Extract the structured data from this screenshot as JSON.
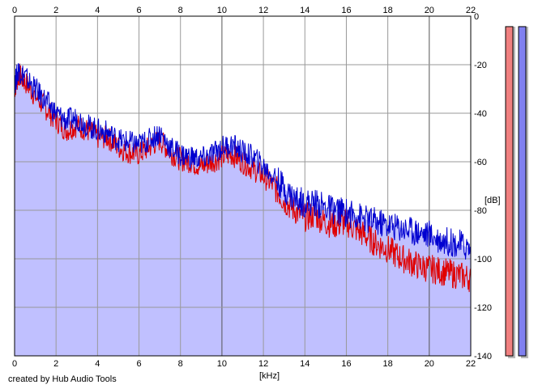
{
  "footer": {
    "credit": "created by Hub Audio Tools"
  },
  "chart_data": {
    "type": "line",
    "title": "",
    "xlabel": "[kHz]",
    "ylabel": "[dB]",
    "xlim": [
      0,
      22
    ],
    "ylim": [
      -140,
      0
    ],
    "x_ticks": [
      0,
      2,
      4,
      6,
      8,
      10,
      12,
      14,
      16,
      18,
      20,
      22
    ],
    "y_ticks": [
      0,
      -20,
      -40,
      -60,
      -80,
      -100,
      -120,
      -140
    ],
    "grid": true,
    "colors": {
      "fill": "#c0c0ff",
      "left_channel": "#e00000",
      "right_channel": "#0000d0",
      "plot_bg": "#ffffff"
    },
    "series": [
      {
        "color": "#e00000",
        "x": [
          0,
          0.2,
          0.5,
          1,
          1.5,
          2,
          2.5,
          3,
          3.5,
          4,
          4.5,
          5,
          5.5,
          6,
          6.5,
          7,
          7.5,
          8,
          8.5,
          9,
          9.5,
          10,
          10.5,
          11,
          11.5,
          12,
          12.5,
          13,
          13.5,
          14,
          14.5,
          15,
          15.5,
          16,
          16.5,
          17,
          17.5,
          18,
          18.5,
          19,
          19.5,
          20,
          20.5,
          21,
          21.5,
          22
        ],
        "values": [
          -30,
          -24,
          -27,
          -33,
          -38,
          -43,
          -47,
          -45,
          -47,
          -50,
          -50,
          -54,
          -56,
          -57,
          -54,
          -51,
          -56,
          -59,
          -60,
          -62,
          -60,
          -58,
          -57,
          -60,
          -63,
          -66,
          -70,
          -76,
          -80,
          -83,
          -82,
          -85,
          -86,
          -85,
          -88,
          -91,
          -94,
          -96,
          -99,
          -101,
          -103,
          -104,
          -105,
          -106,
          -107,
          -108
        ]
      },
      {
        "color": "#0000d0",
        "x": [
          0,
          0.2,
          0.5,
          1,
          1.5,
          2,
          2.5,
          3,
          3.5,
          4,
          4.5,
          5,
          5.5,
          6,
          6.5,
          7,
          7.5,
          8,
          8.5,
          9,
          9.5,
          10,
          10.5,
          11,
          11.5,
          12,
          12.5,
          13,
          13.5,
          14,
          14.5,
          15,
          15.5,
          16,
          16.5,
          17,
          17.5,
          18,
          18.5,
          19,
          19.5,
          20,
          20.5,
          21,
          21.5,
          22
        ],
        "values": [
          -28,
          -22,
          -25,
          -30,
          -35,
          -40,
          -43,
          -42,
          -45,
          -47,
          -48,
          -51,
          -52,
          -53,
          -51,
          -48,
          -54,
          -57,
          -58,
          -59,
          -57,
          -54,
          -53,
          -56,
          -58,
          -62,
          -66,
          -71,
          -75,
          -77,
          -77,
          -79,
          -80,
          -81,
          -82,
          -84,
          -85,
          -86,
          -87,
          -88,
          -89,
          -90,
          -92,
          -93,
          -94,
          -96
        ]
      }
    ]
  },
  "level_meters": [
    {
      "color": "#f08080",
      "level": -1
    },
    {
      "color": "#8080f0",
      "level": -1
    }
  ]
}
